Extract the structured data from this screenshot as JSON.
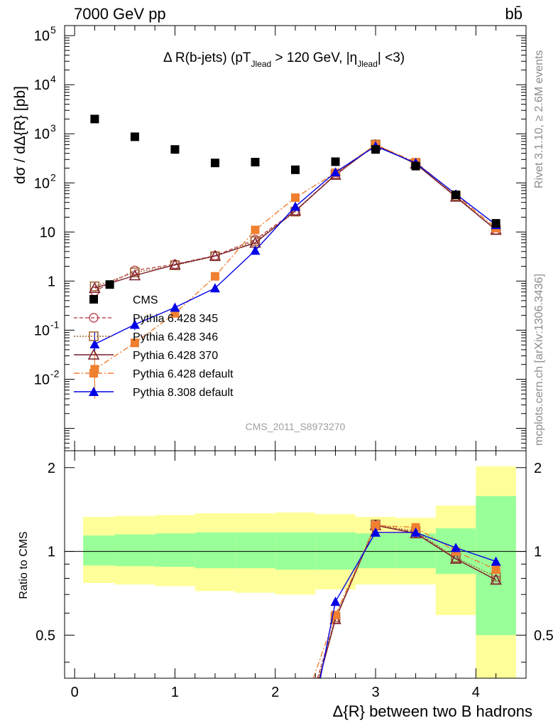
{
  "header": {
    "left": "7000 GeV pp",
    "right": "bb̄"
  },
  "side_labels": {
    "rivet": "Rivet 3.1.10, ≥ 2.6M events",
    "mcplots": "mcplots.cern.ch [arXiv:1306.3436]"
  },
  "analysis_label": "CMS_2011_S8973270",
  "chart_data": [
    {
      "type": "scatter",
      "title": "Δ R(b-jets) (pT_Jlead > 120 GeV, |η_Jlead| <3)",
      "title_parts": {
        "main": "Δ R(b-jets) (pT",
        "sub1": "Jlead",
        "mid": " >  120 GeV, |η",
        "sub2": "Jlead",
        "end": "| <3)"
      },
      "ylabel": "dσ / dΔ{R} [pb]",
      "xlabel": "",
      "yscale": "log",
      "xlim": [
        -0.1,
        4.5
      ],
      "ylim": [
        0.00035,
        160000
      ],
      "ytick_labels": [
        {
          "v": 0.01,
          "text": "10",
          "sup": "-2"
        },
        {
          "v": 0.1,
          "text": "10",
          "sup": "-1"
        },
        {
          "v": 1,
          "text": "1",
          "sup": ""
        },
        {
          "v": 10,
          "text": "10",
          "sup": ""
        },
        {
          "v": 100,
          "text": "10",
          "sup": "2"
        },
        {
          "v": 1000,
          "text": "10",
          "sup": "3"
        },
        {
          "v": 10000,
          "text": "10",
          "sup": "4"
        },
        {
          "v": 100000,
          "text": "10",
          "sup": "5"
        }
      ],
      "legend_position": "left",
      "series": [
        {
          "name": "CMS",
          "color": "#000000",
          "marker": "square-filled",
          "dash": "none",
          "x": [
            0.35,
            0.6,
            1.0,
            1.4,
            1.8,
            2.2,
            2.6,
            3.0,
            3.4,
            3.8,
            4.2
          ],
          "y": [
            0.85,
            870,
            480,
            255,
            265,
            185,
            270,
            480,
            220,
            57,
            15
          ],
          "extra_points": [
            {
              "x": 0.2,
              "y": 2000
            }
          ]
        },
        {
          "name": "Pythia 6.428 345",
          "color": "#c0505a",
          "marker": "circle-open",
          "dash": "5,3",
          "x": [
            0.2,
            0.6,
            1.0,
            1.4,
            1.8,
            2.2,
            2.6,
            3.0,
            3.4,
            3.8,
            4.2
          ],
          "y": [
            0.62,
            1.65,
            2.2,
            3.3,
            7.0,
            27,
            150,
            600,
            245,
            53,
            11
          ]
        },
        {
          "name": "Pythia 6.428 346",
          "color": "#a0622d",
          "marker": "square-open",
          "dash": "2,2",
          "x": [
            0.2,
            0.6,
            1.0,
            1.4,
            1.8,
            2.2,
            2.6,
            3.0,
            3.4,
            3.8,
            4.2
          ],
          "y": [
            0.78,
            1.5,
            2.1,
            3.2,
            6.5,
            26,
            148,
            605,
            250,
            54,
            11
          ]
        },
        {
          "name": "Pythia 6.428 370",
          "color": "#7a1f2b",
          "marker": "triangle-open",
          "dash": "none",
          "x": [
            0.2,
            0.6,
            1.0,
            1.4,
            1.8,
            2.2,
            2.6,
            3.0,
            3.4,
            3.8,
            4.2
          ],
          "y": [
            0.72,
            1.3,
            2.15,
            3.25,
            6.0,
            27,
            145,
            590,
            245,
            52,
            11
          ]
        },
        {
          "name": "Pythia 6.428 default",
          "color": "#f07f30",
          "marker": "square-filled",
          "dash": "8,3,2,3",
          "x": [
            0.2,
            0.6,
            1.0,
            1.4,
            1.8,
            2.2,
            2.6,
            3.0,
            3.4,
            3.8,
            4.2
          ],
          "y": [
            0.016,
            0.055,
            0.22,
            1.25,
            11,
            50,
            160,
            600,
            265,
            57,
            12
          ]
        },
        {
          "name": "Pythia 8.308 default",
          "color": "#0000e6",
          "marker": "triangle-filled",
          "dash": "none",
          "x": [
            0.2,
            0.6,
            1.0,
            1.4,
            1.8,
            2.2,
            2.6,
            3.0,
            3.4,
            3.8,
            4.2
          ],
          "y": [
            0.052,
            0.13,
            0.29,
            0.72,
            4.2,
            33,
            165,
            560,
            255,
            59,
            14
          ]
        }
      ]
    },
    {
      "type": "line",
      "ylabel": "Ratio to CMS",
      "xlabel": "Δ{R} between two B hadrons",
      "xlim": [
        -0.1,
        4.5
      ],
      "ylim": [
        0.35,
        2.3
      ],
      "yticks": [
        0.5,
        1,
        2
      ],
      "ytick_labels": [
        "0.5",
        "1",
        "2"
      ],
      "xticks": [
        0,
        1,
        2,
        3,
        4
      ],
      "xtick_labels": [
        "0",
        "1",
        "2",
        "3",
        "4"
      ],
      "reference_line": 1,
      "bands": {
        "bins": [
          0.0,
          0.4,
          0.8,
          1.2,
          1.6,
          2.0,
          2.4,
          2.8,
          3.2,
          3.6,
          4.0,
          4.4
        ],
        "yellow_lo": [
          0.77,
          0.76,
          0.75,
          0.72,
          0.71,
          0.7,
          0.73,
          0.76,
          0.76,
          0.59,
          0.35
        ],
        "yellow_hi": [
          1.33,
          1.34,
          1.35,
          1.37,
          1.37,
          1.38,
          1.36,
          1.33,
          1.32,
          1.46,
          2.02
        ],
        "green_lo": [
          0.89,
          0.885,
          0.88,
          0.87,
          0.87,
          0.86,
          0.86,
          0.87,
          0.87,
          0.83,
          0.5
        ],
        "green_hi": [
          1.14,
          1.15,
          1.16,
          1.17,
          1.17,
          1.17,
          1.17,
          1.16,
          1.16,
          1.21,
          1.58
        ]
      },
      "series": [
        {
          "name": "Pythia 6.428 345",
          "color": "#c0505a",
          "marker": "circle-open",
          "dash": "5,3",
          "x": [
            2.6,
            3.0,
            3.4,
            3.8,
            4.2
          ],
          "y": [
            0.57,
            1.24,
            1.17,
            0.94,
            0.79
          ],
          "entry": {
            "x": 2.42,
            "y": 0.35
          }
        },
        {
          "name": "Pythia 6.428 346",
          "color": "#a0622d",
          "marker": "square-open",
          "dash": "2,2",
          "x": [
            2.6,
            3.0,
            3.4,
            3.8,
            4.2
          ],
          "y": [
            0.58,
            1.25,
            1.18,
            0.95,
            0.81
          ],
          "entry": {
            "x": 2.43,
            "y": 0.35
          }
        },
        {
          "name": "Pythia 6.428 370",
          "color": "#7a1f2b",
          "marker": "triangle-open",
          "dash": "none",
          "x": [
            2.6,
            3.0,
            3.4,
            3.8,
            4.2
          ],
          "y": [
            0.57,
            1.24,
            1.16,
            0.94,
            0.79
          ],
          "entry": {
            "x": 2.44,
            "y": 0.35
          }
        },
        {
          "name": "Pythia 6.428 default",
          "color": "#f07f30",
          "marker": "square-filled",
          "dash": "8,3,2,3",
          "x": [
            2.6,
            3.0,
            3.4,
            3.8,
            4.2
          ],
          "y": [
            0.59,
            1.24,
            1.22,
            1.0,
            0.86
          ],
          "entry": {
            "x": 2.38,
            "y": 0.35
          }
        },
        {
          "name": "Pythia 8.308 default",
          "color": "#0000e6",
          "marker": "triangle-filled",
          "dash": "none",
          "x": [
            2.6,
            3.0,
            3.4,
            3.8,
            4.2
          ],
          "y": [
            0.66,
            1.17,
            1.17,
            1.03,
            0.92
          ],
          "entry": {
            "x": 2.45,
            "y": 0.35
          }
        }
      ]
    }
  ]
}
